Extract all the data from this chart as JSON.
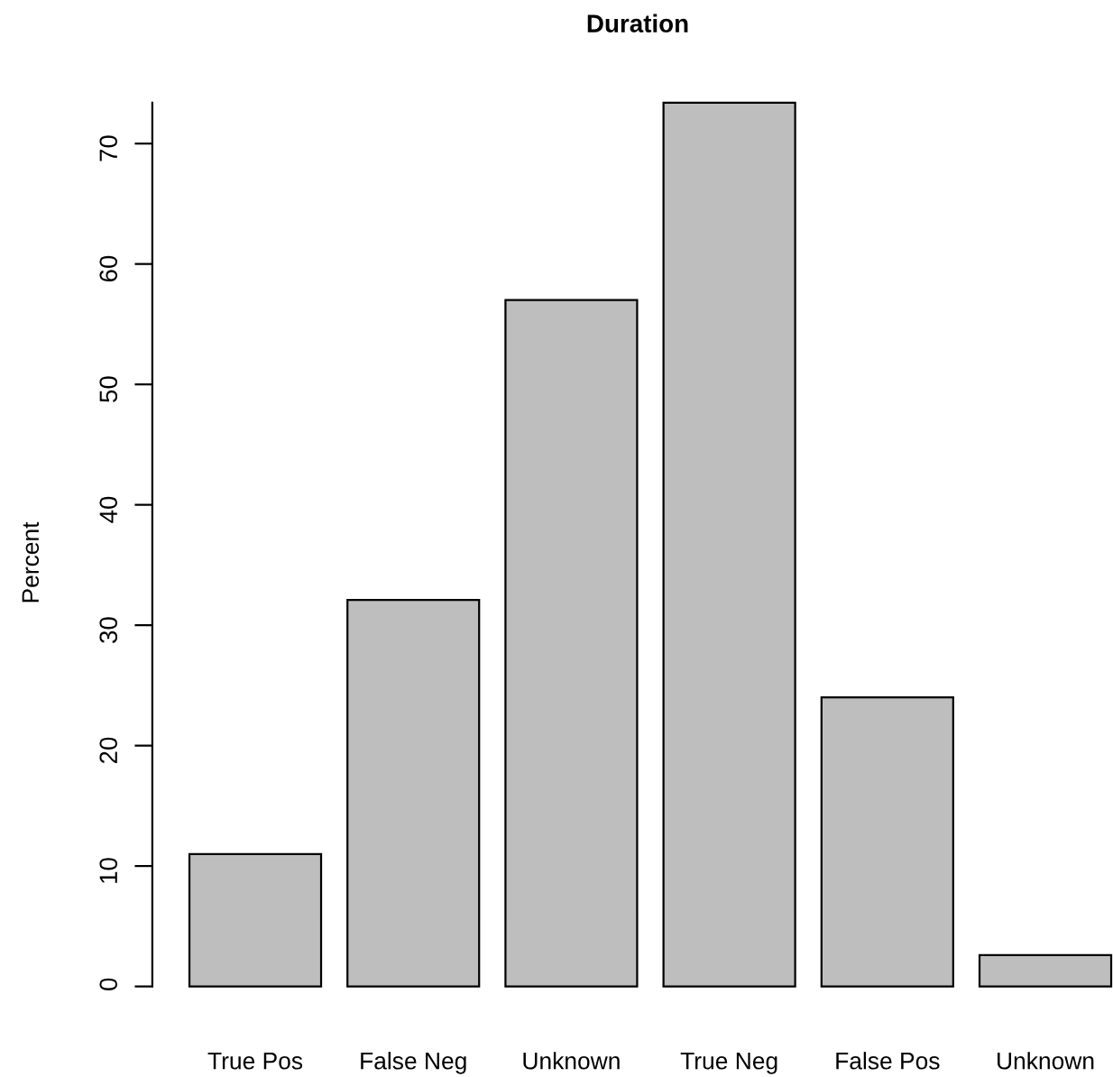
{
  "chart_data": {
    "type": "bar",
    "title": "Duration",
    "ylabel": "Percent",
    "categories": [
      "True Pos",
      "False Neg",
      "Unknown",
      "True Neg",
      "False Pos",
      "Unknown"
    ],
    "values": [
      11.0,
      32.1,
      57.0,
      73.4,
      24.0,
      2.6
    ],
    "color": "#bebebe",
    "ylim": [
      0,
      73.4
    ],
    "yticks": [
      0,
      10,
      20,
      30,
      40,
      50,
      60,
      70
    ],
    "grid": false,
    "legend": false
  }
}
